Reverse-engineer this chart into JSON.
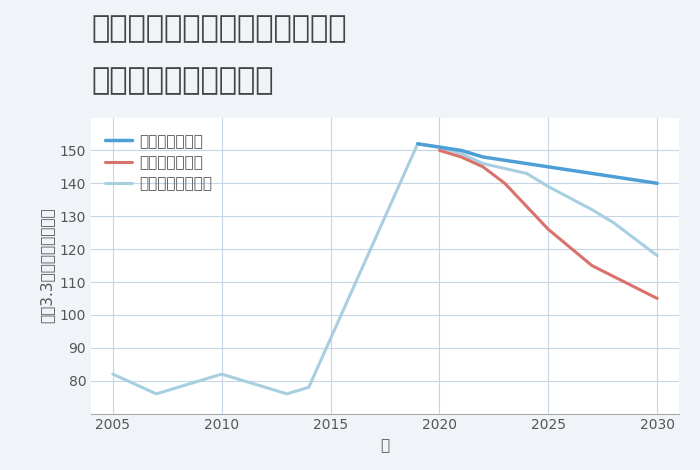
{
  "title_line1": "愛知県名古屋市中村区砂田町の",
  "title_line2": "中古戸建ての価格推移",
  "xlabel": "年",
  "ylabel": "坪（3.3㎡）単価（万円）",
  "background_color": "#f0f4f8",
  "plot_background_color": "#ffffff",
  "grid_color": "#c5d5e5",
  "years_historical": [
    2005,
    2007,
    2010,
    2011,
    2013,
    2014,
    2019
  ],
  "values_historical": [
    82,
    76,
    82,
    80,
    76,
    78,
    152
  ],
  "good_scenario": {
    "years": [
      2019,
      2020,
      2021,
      2022,
      2024,
      2025,
      2027,
      2030
    ],
    "values": [
      152,
      151,
      150,
      148,
      146,
      145,
      143,
      140
    ],
    "color": "#4d9fd6",
    "label": "グッドシナリオ",
    "linewidth": 2.5
  },
  "bad_scenario": {
    "years": [
      2020,
      2021,
      2022,
      2023,
      2024,
      2025,
      2027,
      2030
    ],
    "values": [
      150,
      148,
      145,
      140,
      133,
      126,
      115,
      105
    ],
    "color": "#d9726a",
    "label": "バッドシナリオ",
    "linewidth": 2.2
  },
  "normal_scenario": {
    "years": [
      2019,
      2020,
      2021,
      2022,
      2024,
      2025,
      2027,
      2028,
      2030
    ],
    "values": [
      152,
      151,
      149,
      146,
      143,
      139,
      132,
      128,
      118
    ],
    "color": "#a8cfe0",
    "label": "ノーマルシナリオ",
    "linewidth": 2.2
  },
  "ylim": [
    70,
    160
  ],
  "xlim": [
    2004,
    2031
  ],
  "yticks": [
    80,
    90,
    100,
    110,
    120,
    130,
    140,
    150
  ],
  "xticks": [
    2005,
    2010,
    2015,
    2020,
    2025,
    2030
  ],
  "title_fontsize": 22,
  "axis_label_fontsize": 11,
  "tick_fontsize": 10,
  "legend_fontsize": 11
}
